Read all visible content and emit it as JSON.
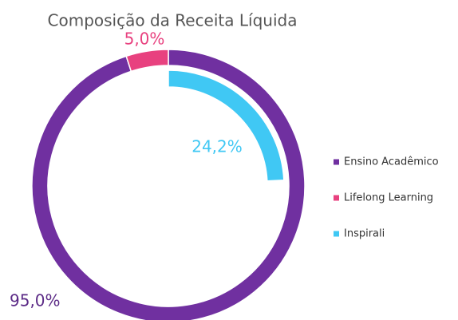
{
  "chart_data": {
    "type": "doughnut",
    "title": "Composição da Receita Líquida",
    "rings": [
      {
        "categories": [
          "Ensino Acadêmico",
          "Lifelong Learning"
        ],
        "values": [
          95,
          5
        ],
        "value_labels": [
          "95,0%",
          "5,0%"
        ],
        "colors": [
          "#7030a0",
          "#e8417f"
        ]
      },
      {
        "categories": [
          "Inspirali"
        ],
        "values": [
          24.2
        ],
        "value_labels": [
          "24,2%"
        ],
        "colors": [
          "#40c8f4"
        ]
      }
    ]
  }
}
